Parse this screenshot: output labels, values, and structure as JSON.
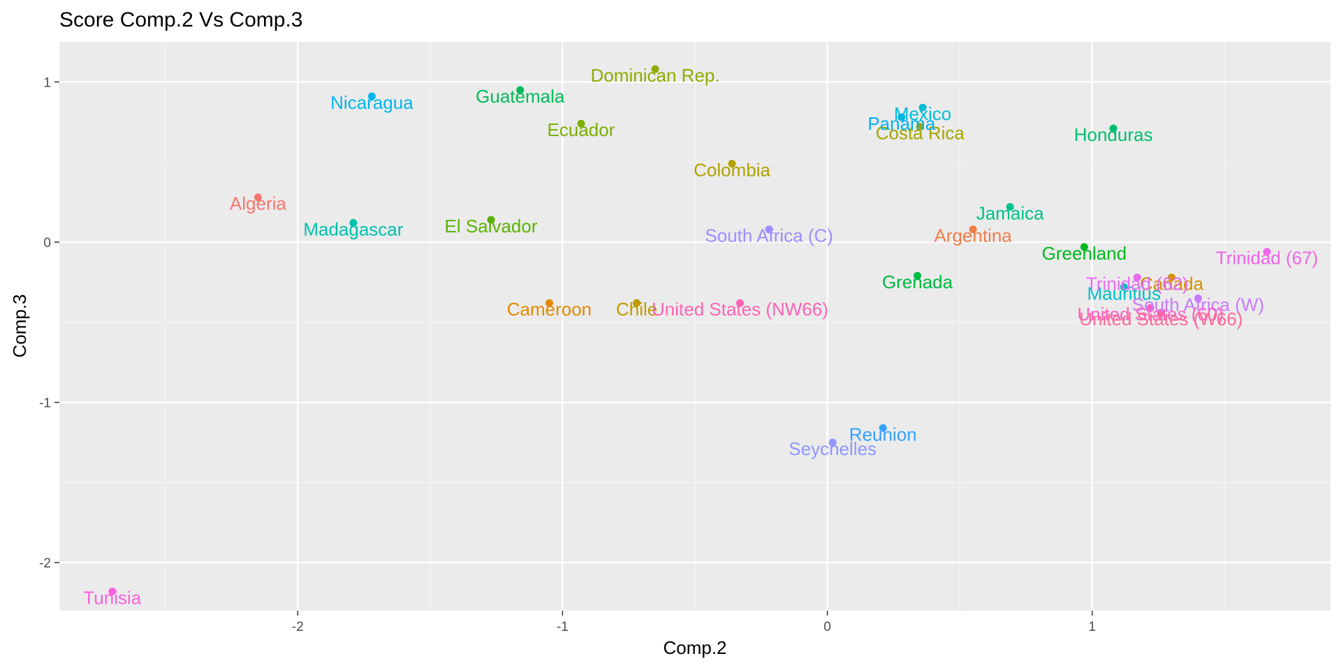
{
  "chart_data": {
    "type": "scatter",
    "title": "Score Comp.2 Vs Comp.3",
    "xlabel": "Comp.2",
    "ylabel": "Comp.3",
    "xlim": [
      -2.9,
      1.9
    ],
    "ylim": [
      -2.3,
      1.25
    ],
    "x_ticks": [
      -2,
      -1,
      0,
      1
    ],
    "y_ticks": [
      1,
      0,
      -1,
      -2
    ],
    "x_tick_labels": [
      "-2",
      "-1",
      "0",
      "1"
    ],
    "y_tick_labels": [
      "1",
      "0",
      "-1",
      "-2"
    ],
    "grid": true,
    "legend": "none",
    "points": [
      {
        "label": "Algeria",
        "x": -2.15,
        "y": 0.28,
        "color": "#F8766D"
      },
      {
        "label": "Argentina",
        "x": 0.55,
        "y": 0.08,
        "color": "#EF7F49"
      },
      {
        "label": "Cameroon",
        "x": -1.05,
        "y": -0.38,
        "color": "#E38900"
      },
      {
        "label": "Canada",
        "x": 1.3,
        "y": -0.22,
        "color": "#D39200"
      },
      {
        "label": "Chile",
        "x": -0.72,
        "y": -0.38,
        "color": "#C09B00"
      },
      {
        "label": "Colombia",
        "x": -0.36,
        "y": 0.49,
        "color": "#B0A100"
      },
      {
        "label": "Costa Rica",
        "x": 0.35,
        "y": 0.72,
        "color": "#A3A500"
      },
      {
        "label": "Dominican Rep.",
        "x": -0.65,
        "y": 1.08,
        "color": "#93AA00"
      },
      {
        "label": "Ecuador",
        "x": -0.93,
        "y": 0.74,
        "color": "#7AAF00"
      },
      {
        "label": "El Salvador",
        "x": -1.27,
        "y": 0.14,
        "color": "#5BB300"
      },
      {
        "label": "Greenland",
        "x": 0.97,
        "y": -0.03,
        "color": "#00B81F"
      },
      {
        "label": "Grenada",
        "x": 0.34,
        "y": -0.21,
        "color": "#00BA42"
      },
      {
        "label": "Guatemala",
        "x": -1.16,
        "y": 0.95,
        "color": "#00BC59"
      },
      {
        "label": "Honduras",
        "x": 1.08,
        "y": 0.71,
        "color": "#00BE70"
      },
      {
        "label": "Jamaica",
        "x": 0.69,
        "y": 0.22,
        "color": "#00C08B"
      },
      {
        "label": "Madagascar",
        "x": -1.79,
        "y": 0.12,
        "color": "#00C0AF"
      },
      {
        "label": "Mauritius",
        "x": 1.12,
        "y": -0.28,
        "color": "#00BFC4"
      },
      {
        "label": "Mexico",
        "x": 0.36,
        "y": 0.84,
        "color": "#00BCD8"
      },
      {
        "label": "Nicaragua",
        "x": -1.72,
        "y": 0.91,
        "color": "#00B6EB"
      },
      {
        "label": "Panama",
        "x": 0.28,
        "y": 0.78,
        "color": "#00B0F6"
      },
      {
        "label": "Reunion",
        "x": 0.21,
        "y": -1.16,
        "color": "#35A2FF"
      },
      {
        "label": "Seychelles",
        "x": 0.02,
        "y": -1.25,
        "color": "#8F97FF"
      },
      {
        "label": "South Africa (C)",
        "x": -0.22,
        "y": 0.08,
        "color": "#9F8CFF"
      },
      {
        "label": "South Africa (W)",
        "x": 1.4,
        "y": -0.35,
        "color": "#C77CFF"
      },
      {
        "label": "Trinidad (62)",
        "x": 1.17,
        "y": -0.22,
        "color": "#E76BF3"
      },
      {
        "label": "Trinidad (67)",
        "x": 1.66,
        "y": -0.06,
        "color": "#F066EA"
      },
      {
        "label": "Tunisia",
        "x": -2.7,
        "y": -2.18,
        "color": "#FA62DB"
      },
      {
        "label": "United States (60)",
        "x": 1.22,
        "y": -0.41,
        "color": "#FF61C3"
      },
      {
        "label": "United States (NW66)",
        "x": -0.33,
        "y": -0.38,
        "color": "#FF63B6"
      },
      {
        "label": "United States (W66)",
        "x": 1.26,
        "y": -0.44,
        "color": "#FF6A98"
      }
    ],
    "colors": {
      "panel_background": "#EBEBEB",
      "grid_major": "#FFFFFF",
      "grid_minor": "#F5F5F5"
    }
  }
}
